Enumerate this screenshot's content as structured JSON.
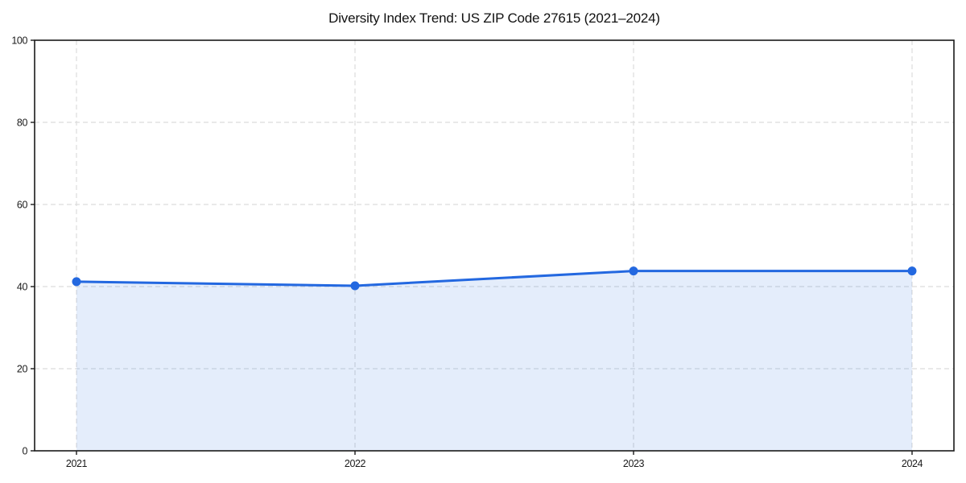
{
  "chart_data": {
    "type": "area",
    "title": "Diversity Index Trend: US ZIP Code 27615 (2021–2024)",
    "x": [
      "2021",
      "2022",
      "2023",
      "2024"
    ],
    "series": [
      {
        "name": "Diversity Index",
        "values": [
          41.2,
          40.2,
          43.8,
          43.8
        ]
      }
    ],
    "xlabel": "",
    "ylabel": "",
    "ylim": [
      0,
      100
    ],
    "yticks": [
      0,
      20,
      40,
      60,
      80,
      100
    ],
    "grid": "dashed-both",
    "legend": "none",
    "colors": {
      "line": "#2368e0",
      "marker": "#2368e0",
      "fill": "rgba(35, 104, 224, 0.12)",
      "grid": "#dcdcdc",
      "spine": "#1a1a1a",
      "text": "#1a1a1a",
      "background": "#ffffff"
    }
  }
}
